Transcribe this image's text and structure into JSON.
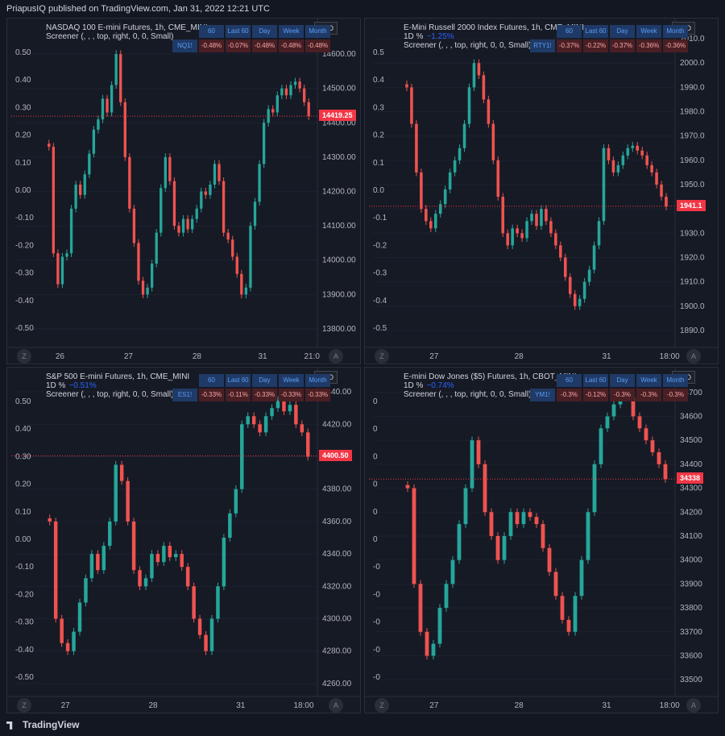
{
  "header": {
    "text": "PriapusIQ published on TradingView.com, Jan 31, 2022 12:21 UTC"
  },
  "footer": {
    "logo": "TradingView"
  },
  "chart_data": [
    {
      "type": "candlestick",
      "title": "NASDAQ 100 E-mini Futures, 1h, CME_MINI",
      "pct_label": "",
      "screener_text": "Screener (, , , top, right, 0, 0, Small)",
      "screener_headers": [
        "60",
        "Last 60",
        "Day",
        "Week",
        "Month"
      ],
      "screener_symbol": "NQ1!",
      "screener_values": [
        "-0.48%",
        "-0.07%",
        "-0.48%",
        "-0.48%",
        "-0.48%"
      ],
      "currency": "USD",
      "last_price_label": "14419.25",
      "last_price": 14419.25,
      "ylim": [
        13760,
        14680
      ],
      "y_ticks": [
        "14600.00",
        "14500.00",
        "14400.00",
        "14300.00",
        "14200.00",
        "14100.00",
        "14000.00",
        "13900.00",
        "13800.00"
      ],
      "left_ticks": [
        "0.50",
        "0.40",
        "0.30",
        "0.20",
        "0.10",
        "0.00",
        "-0.10",
        "-0.20",
        "-0.30",
        "-0.40",
        "-0.50"
      ],
      "x_ticks": [
        "26",
        "27",
        "28",
        "31",
        "21:0"
      ],
      "x_tick_pos": [
        0.06,
        0.31,
        0.56,
        0.8,
        0.98
      ],
      "closes": [
        14330,
        14020,
        13930,
        14010,
        14020,
        14150,
        14220,
        14190,
        14250,
        14310,
        14380,
        14410,
        14470,
        14430,
        14510,
        14600,
        14460,
        14300,
        14150,
        14050,
        13940,
        13900,
        13920,
        13990,
        14080,
        14210,
        14300,
        14230,
        14100,
        14080,
        14120,
        14090,
        14120,
        14150,
        14200,
        14190,
        14220,
        14280,
        14230,
        14080,
        14060,
        14010,
        13960,
        13900,
        13920,
        14100,
        14170,
        14280,
        14400,
        14440,
        14430,
        14480,
        14500,
        14480,
        14510,
        14520,
        14500,
        14460,
        14419
      ]
    },
    {
      "type": "candlestick",
      "title": "E-Mini Russell 2000 Index Futures, 1h, CME_MINI",
      "pct_label": "1D %",
      "pct_value": "−1.25%",
      "screener_text": "Screener (, , , top, right, 0, 0, Small)",
      "screener_headers": [
        "60",
        "Last 60",
        "Day",
        "Week",
        "Month"
      ],
      "screener_symbol": "RTY1!",
      "screener_values": [
        "-0.37%",
        "-0.22%",
        "-0.37%",
        "-0.36%",
        "-0.36%"
      ],
      "currency": "USD",
      "last_price_label": "1941.1",
      "last_price": 1941.1,
      "ylim": [
        1885,
        2015
      ],
      "y_ticks": [
        "2010.0",
        "2000.0",
        "1990.0",
        "1980.0",
        "1970.0",
        "1960.0",
        "1950.0",
        "1940.0",
        "1930.0",
        "1920.0",
        "1910.0",
        "1900.0",
        "1890.0"
      ],
      "left_ticks": [
        "0.5",
        "0.4",
        "0.3",
        "0.2",
        "0.1",
        "0.0",
        "-0.1",
        "-0.2",
        "-0.3",
        "-0.4",
        "-0.5"
      ],
      "x_ticks": [
        "27",
        "28",
        "31",
        "18:00"
      ],
      "x_tick_pos": [
        0.12,
        0.43,
        0.75,
        0.98
      ],
      "closes": [
        1990,
        1975,
        1955,
        1940,
        1935,
        1932,
        1938,
        1942,
        1948,
        1955,
        1960,
        1965,
        1975,
        1990,
        2000,
        1995,
        1985,
        1975,
        1960,
        1945,
        1930,
        1925,
        1932,
        1930,
        1928,
        1935,
        1938,
        1933,
        1940,
        1935,
        1930,
        1925,
        1920,
        1912,
        1905,
        1900,
        1903,
        1910,
        1915,
        1925,
        1935,
        1965,
        1960,
        1955,
        1958,
        1962,
        1965,
        1966,
        1964,
        1962,
        1958,
        1955,
        1950,
        1945,
        1941
      ]
    },
    {
      "type": "candlestick",
      "title": "S&P 500 E-mini Futures, 1h, CME_MINI",
      "pct_label": "1D %",
      "pct_value": "−0.51%",
      "screener_text": "Screener (, , , top, right, 0, 0, Small)",
      "screener_headers": [
        "60",
        "Last 60",
        "Day",
        "Week",
        "Month"
      ],
      "screener_symbol": "ES1!",
      "screener_values": [
        "-0.33%",
        "-0.11%",
        "-0.33%",
        "-0.33%",
        "-0.33%"
      ],
      "currency": "USD",
      "last_price_label": "4400.50",
      "last_price": 4400.5,
      "ylim": [
        4255,
        4450
      ],
      "y_ticks": [
        "4440.00",
        "4420.00",
        "4400.00",
        "4380.00",
        "4360.00",
        "4340.00",
        "4320.00",
        "4300.00",
        "4280.00",
        "4260.00"
      ],
      "left_ticks": [
        "0.50",
        "0.40",
        "0.30",
        "0.20",
        "0.10",
        "0.00",
        "-0.10",
        "-0.20",
        "-0.30",
        "-0.40",
        "-0.50"
      ],
      "x_ticks": [
        "27",
        "28",
        "31",
        "18:00"
      ],
      "x_tick_pos": [
        0.08,
        0.4,
        0.72,
        0.95
      ],
      "closes": [
        4360,
        4300,
        4285,
        4280,
        4292,
        4310,
        4325,
        4340,
        4330,
        4345,
        4360,
        4395,
        4385,
        4360,
        4330,
        4320,
        4325,
        4340,
        4335,
        4345,
        4338,
        4340,
        4332,
        4320,
        4300,
        4290,
        4280,
        4300,
        4320,
        4350,
        4365,
        4380,
        4420,
        4425,
        4420,
        4415,
        4425,
        4430,
        4435,
        4428,
        4432,
        4420,
        4415,
        4400
      ]
    },
    {
      "type": "candlestick",
      "title": "E-mini Dow Jones ($5) Futures, 1h, CBOT_MINI",
      "pct_label": "1D %",
      "pct_value": "−0.74%",
      "screener_text": "Screener (, , , top, right, 0, 0, Small)",
      "screener_headers": [
        "60",
        "Last 60",
        "Day",
        "Week",
        "Month"
      ],
      "screener_symbol": "YM1!",
      "screener_values": [
        "-0.3%",
        "-0.12%",
        "-0.3%",
        "-0.3%",
        "-0.3%"
      ],
      "currency": "USD",
      "last_price_label": "34338",
      "last_price": 34338,
      "ylim": [
        33450,
        34770
      ],
      "y_ticks": [
        "34700",
        "34600",
        "34500",
        "34400",
        "34300",
        "34200",
        "34100",
        "34000",
        "33900",
        "33800",
        "33700",
        "33600",
        "33500"
      ],
      "left_ticks": [
        "0",
        "0",
        "0",
        "0",
        "0",
        "0",
        "-0",
        "-0",
        "-0",
        "-0",
        "-0"
      ],
      "x_ticks": [
        "27",
        "28",
        "31",
        "18:00"
      ],
      "x_tick_pos": [
        0.12,
        0.43,
        0.75,
        0.98
      ],
      "closes": [
        34300,
        33900,
        33700,
        33600,
        33650,
        33800,
        33900,
        34000,
        34150,
        34300,
        34500,
        34400,
        34200,
        34100,
        34000,
        34100,
        34200,
        34150,
        34200,
        34180,
        34150,
        34050,
        33950,
        33850,
        33750,
        33700,
        33850,
        34000,
        34200,
        34400,
        34550,
        34600,
        34650,
        34700,
        34680,
        34600,
        34550,
        34500,
        34450,
        34400,
        34338
      ]
    }
  ]
}
